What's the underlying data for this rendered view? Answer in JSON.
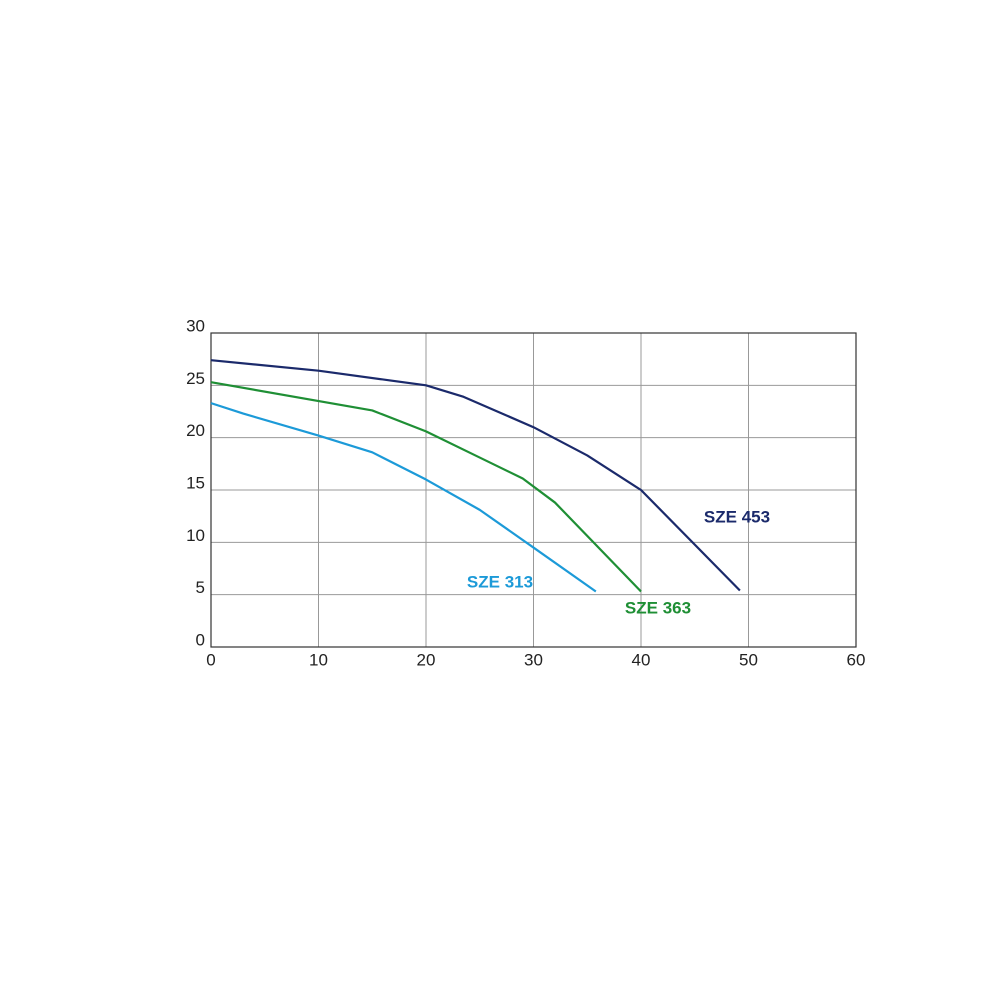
{
  "chart_data": {
    "type": "line",
    "xlim": [
      0,
      60
    ],
    "xticks": [
      0,
      10,
      20,
      30,
      40,
      50,
      60
    ],
    "ylim": [
      0,
      30
    ],
    "yticks": [
      0,
      5,
      10,
      15,
      20,
      25,
      30
    ],
    "grid": true,
    "series": [
      {
        "name": "SZE 453",
        "color": "#1b2a6b",
        "x": [
          0,
          10,
          20,
          23.5,
          30,
          35,
          40,
          49.2
        ],
        "values": [
          27.4,
          26.4,
          25.0,
          23.9,
          21.0,
          18.3,
          15.0,
          5.4
        ]
      },
      {
        "name": "SZE 363",
        "color": "#1f8f35",
        "x": [
          0,
          15,
          20,
          25,
          29,
          32,
          40
        ],
        "values": [
          25.3,
          22.6,
          20.6,
          18.1,
          16.1,
          13.8,
          5.3
        ]
      },
      {
        "name": "SZE 313",
        "color": "#1c9ad8",
        "x": [
          0,
          3,
          10,
          15,
          20,
          25,
          30,
          35.8
        ],
        "values": [
          23.3,
          22.3,
          20.2,
          18.6,
          16.0,
          13.1,
          9.5,
          5.3
        ]
      }
    ]
  }
}
